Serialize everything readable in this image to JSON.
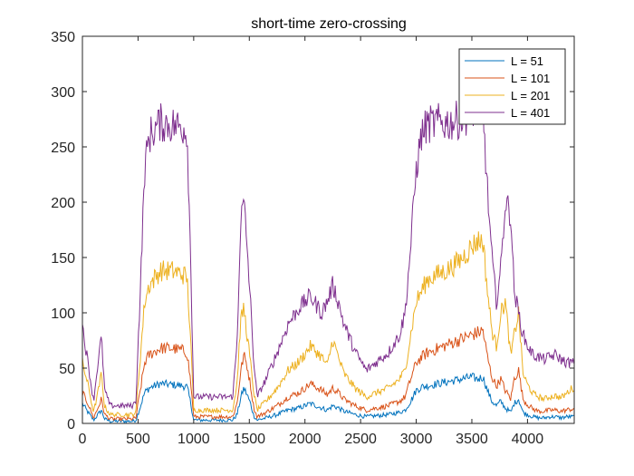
{
  "chart_data": {
    "type": "line",
    "title": "short-time zero-crossing",
    "xlabel": "",
    "ylabel": "",
    "xlim": [
      0,
      4420
    ],
    "ylim": [
      0,
      350
    ],
    "xticks": [
      0,
      500,
      1000,
      1500,
      2000,
      2500,
      3000,
      3500,
      4000
    ],
    "yticks": [
      0,
      50,
      100,
      150,
      200,
      250,
      300,
      350
    ],
    "grid": false,
    "legend_position": "top-right",
    "x_points": [
      0,
      50,
      100,
      140,
      170,
      200,
      250,
      300,
      400,
      450,
      480,
      520,
      560,
      600,
      700,
      800,
      900,
      940,
      970,
      1000,
      1100,
      1200,
      1300,
      1350,
      1390,
      1420,
      1450,
      1480,
      1510,
      1540,
      1570,
      1650,
      1750,
      1850,
      1950,
      2050,
      2150,
      2200,
      2250,
      2300,
      2350,
      2450,
      2550,
      2650,
      2750,
      2850,
      2900,
      2950,
      3000,
      3050,
      3100,
      3200,
      3300,
      3400,
      3500,
      3550,
      3600,
      3640,
      3680,
      3720,
      3760,
      3800,
      3850,
      3880,
      3920,
      3960,
      4000,
      4050,
      4100,
      4150,
      4200,
      4250,
      4300,
      4350,
      4400,
      4420
    ],
    "series": [
      {
        "name": "L = 51",
        "color": "#0072BD",
        "values": [
          18,
          10,
          3,
          8,
          12,
          4,
          2,
          2,
          2,
          2,
          3,
          15,
          28,
          32,
          36,
          35,
          34,
          33,
          20,
          3,
          3,
          3,
          3,
          3,
          8,
          22,
          32,
          26,
          18,
          7,
          3,
          5,
          8,
          12,
          14,
          18,
          14,
          12,
          16,
          14,
          11,
          8,
          6,
          7,
          8,
          10,
          12,
          20,
          30,
          33,
          34,
          36,
          38,
          40,
          42,
          40,
          42,
          30,
          20,
          16,
          20,
          14,
          10,
          18,
          22,
          10,
          8,
          6,
          5,
          5,
          6,
          6,
          5,
          6,
          6,
          6
        ]
      },
      {
        "name": "L = 101",
        "color": "#D95319",
        "values": [
          28,
          18,
          5,
          14,
          22,
          8,
          4,
          4,
          4,
          4,
          5,
          30,
          55,
          62,
          68,
          68,
          66,
          64,
          40,
          6,
          6,
          6,
          6,
          6,
          18,
          45,
          62,
          52,
          35,
          14,
          6,
          10,
          16,
          24,
          28,
          36,
          30,
          26,
          32,
          28,
          22,
          16,
          12,
          14,
          16,
          20,
          24,
          40,
          55,
          60,
          64,
          68,
          72,
          76,
          80,
          82,
          84,
          60,
          42,
          34,
          40,
          30,
          22,
          40,
          48,
          22,
          17,
          13,
          11,
          11,
          12,
          12,
          11,
          12,
          13,
          13
        ]
      },
      {
        "name": "L = 201",
        "color": "#EDB120",
        "values": [
          55,
          35,
          10,
          28,
          45,
          15,
          8,
          8,
          8,
          8,
          10,
          60,
          110,
          125,
          138,
          138,
          135,
          132,
          80,
          12,
          12,
          12,
          12,
          12,
          36,
          90,
          105,
          80,
          55,
          28,
          12,
          20,
          32,
          48,
          56,
          70,
          60,
          52,
          76,
          60,
          45,
          32,
          24,
          28,
          32,
          40,
          48,
          80,
          110,
          120,
          130,
          135,
          140,
          148,
          160,
          165,
          165,
          120,
          84,
          70,
          100,
          110,
          60,
          80,
          100,
          45,
          35,
          27,
          24,
          22,
          24,
          25,
          23,
          27,
          32,
          32
        ]
      },
      {
        "name": "L = 401",
        "color": "#7E2F8E",
        "values": [
          88,
          55,
          20,
          55,
          78,
          30,
          16,
          16,
          16,
          16,
          20,
          120,
          230,
          260,
          272,
          270,
          268,
          265,
          160,
          24,
          24,
          24,
          24,
          24,
          72,
          180,
          200,
          160,
          110,
          56,
          24,
          40,
          64,
          90,
          105,
          115,
          100,
          110,
          125,
          110,
          90,
          65,
          48,
          56,
          64,
          80,
          100,
          160,
          230,
          262,
          270,
          272,
          272,
          275,
          282,
          290,
          285,
          210,
          150,
          110,
          140,
          200,
          190,
          120,
          100,
          80,
          70,
          62,
          60,
          58,
          60,
          62,
          58,
          55,
          55,
          55
        ]
      }
    ]
  }
}
